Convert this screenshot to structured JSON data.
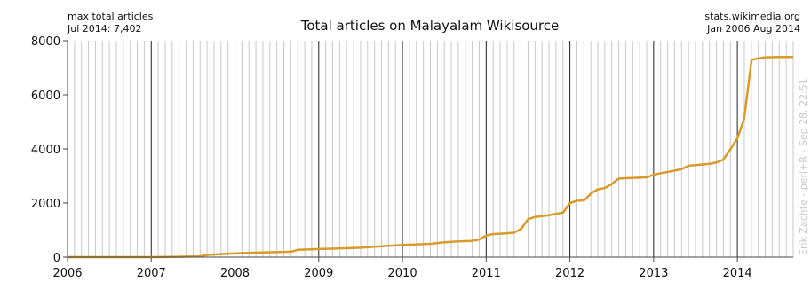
{
  "header": {
    "left_line1": "max total articles",
    "left_line2": "Jul 2014: 7,402",
    "right_line1": "stats.wikimedia.org",
    "right_line2": "Jan 2006 Aug 2014"
  },
  "credit": "Erik Zachte  -  perl+R  -  Sep 28, 22:51",
  "colors": {
    "line": "#d89a2a",
    "major_grid": "#222222",
    "minor_grid": "#c8c8c8",
    "axis": "#444444",
    "background": "#ffffff"
  },
  "chart_data": {
    "type": "line",
    "title": "Total articles on Malayalam Wikisource",
    "xlabel": "",
    "ylabel": "",
    "x_ticks": [
      "2006",
      "2007",
      "2008",
      "2009",
      "2010",
      "2011",
      "2012",
      "2013",
      "2014"
    ],
    "y_ticks": [
      "0",
      "2000",
      "4000",
      "6000",
      "8000"
    ],
    "xlim": [
      2006.0,
      2014.667
    ],
    "ylim": [
      0,
      8000
    ],
    "grid": true,
    "legend": "none",
    "series": [
      {
        "values": [
          [
            2006.0,
            0
          ],
          [
            2006.5,
            0
          ],
          [
            2007.0,
            0
          ],
          [
            2007.25,
            10
          ],
          [
            2007.58,
            30
          ],
          [
            2007.67,
            80
          ],
          [
            2007.83,
            110
          ],
          [
            2008.0,
            140
          ],
          [
            2008.17,
            160
          ],
          [
            2008.42,
            180
          ],
          [
            2008.67,
            200
          ],
          [
            2008.75,
            270
          ],
          [
            2008.83,
            280
          ],
          [
            2009.0,
            300
          ],
          [
            2009.25,
            320
          ],
          [
            2009.5,
            350
          ],
          [
            2009.75,
            400
          ],
          [
            2010.0,
            450
          ],
          [
            2010.17,
            470
          ],
          [
            2010.33,
            490
          ],
          [
            2010.5,
            550
          ],
          [
            2010.67,
            580
          ],
          [
            2010.83,
            600
          ],
          [
            2010.92,
            650
          ],
          [
            2011.0,
            800
          ],
          [
            2011.08,
            850
          ],
          [
            2011.25,
            880
          ],
          [
            2011.33,
            900
          ],
          [
            2011.42,
            1050
          ],
          [
            2011.5,
            1400
          ],
          [
            2011.58,
            1480
          ],
          [
            2011.75,
            1550
          ],
          [
            2011.83,
            1600
          ],
          [
            2011.92,
            1650
          ],
          [
            2012.0,
            2000
          ],
          [
            2012.08,
            2080
          ],
          [
            2012.17,
            2100
          ],
          [
            2012.25,
            2350
          ],
          [
            2012.33,
            2500
          ],
          [
            2012.42,
            2560
          ],
          [
            2012.5,
            2700
          ],
          [
            2012.58,
            2900
          ],
          [
            2012.67,
            2920
          ],
          [
            2012.92,
            2950
          ],
          [
            2013.0,
            3050
          ],
          [
            2013.08,
            3100
          ],
          [
            2013.17,
            3150
          ],
          [
            2013.33,
            3250
          ],
          [
            2013.42,
            3380
          ],
          [
            2013.5,
            3400
          ],
          [
            2013.67,
            3450
          ],
          [
            2013.75,
            3500
          ],
          [
            2013.83,
            3600
          ],
          [
            2013.92,
            4000
          ],
          [
            2014.0,
            4400
          ],
          [
            2014.08,
            5100
          ],
          [
            2014.17,
            7300
          ],
          [
            2014.25,
            7350
          ],
          [
            2014.33,
            7390
          ],
          [
            2014.5,
            7402
          ],
          [
            2014.667,
            7402
          ]
        ]
      }
    ]
  }
}
